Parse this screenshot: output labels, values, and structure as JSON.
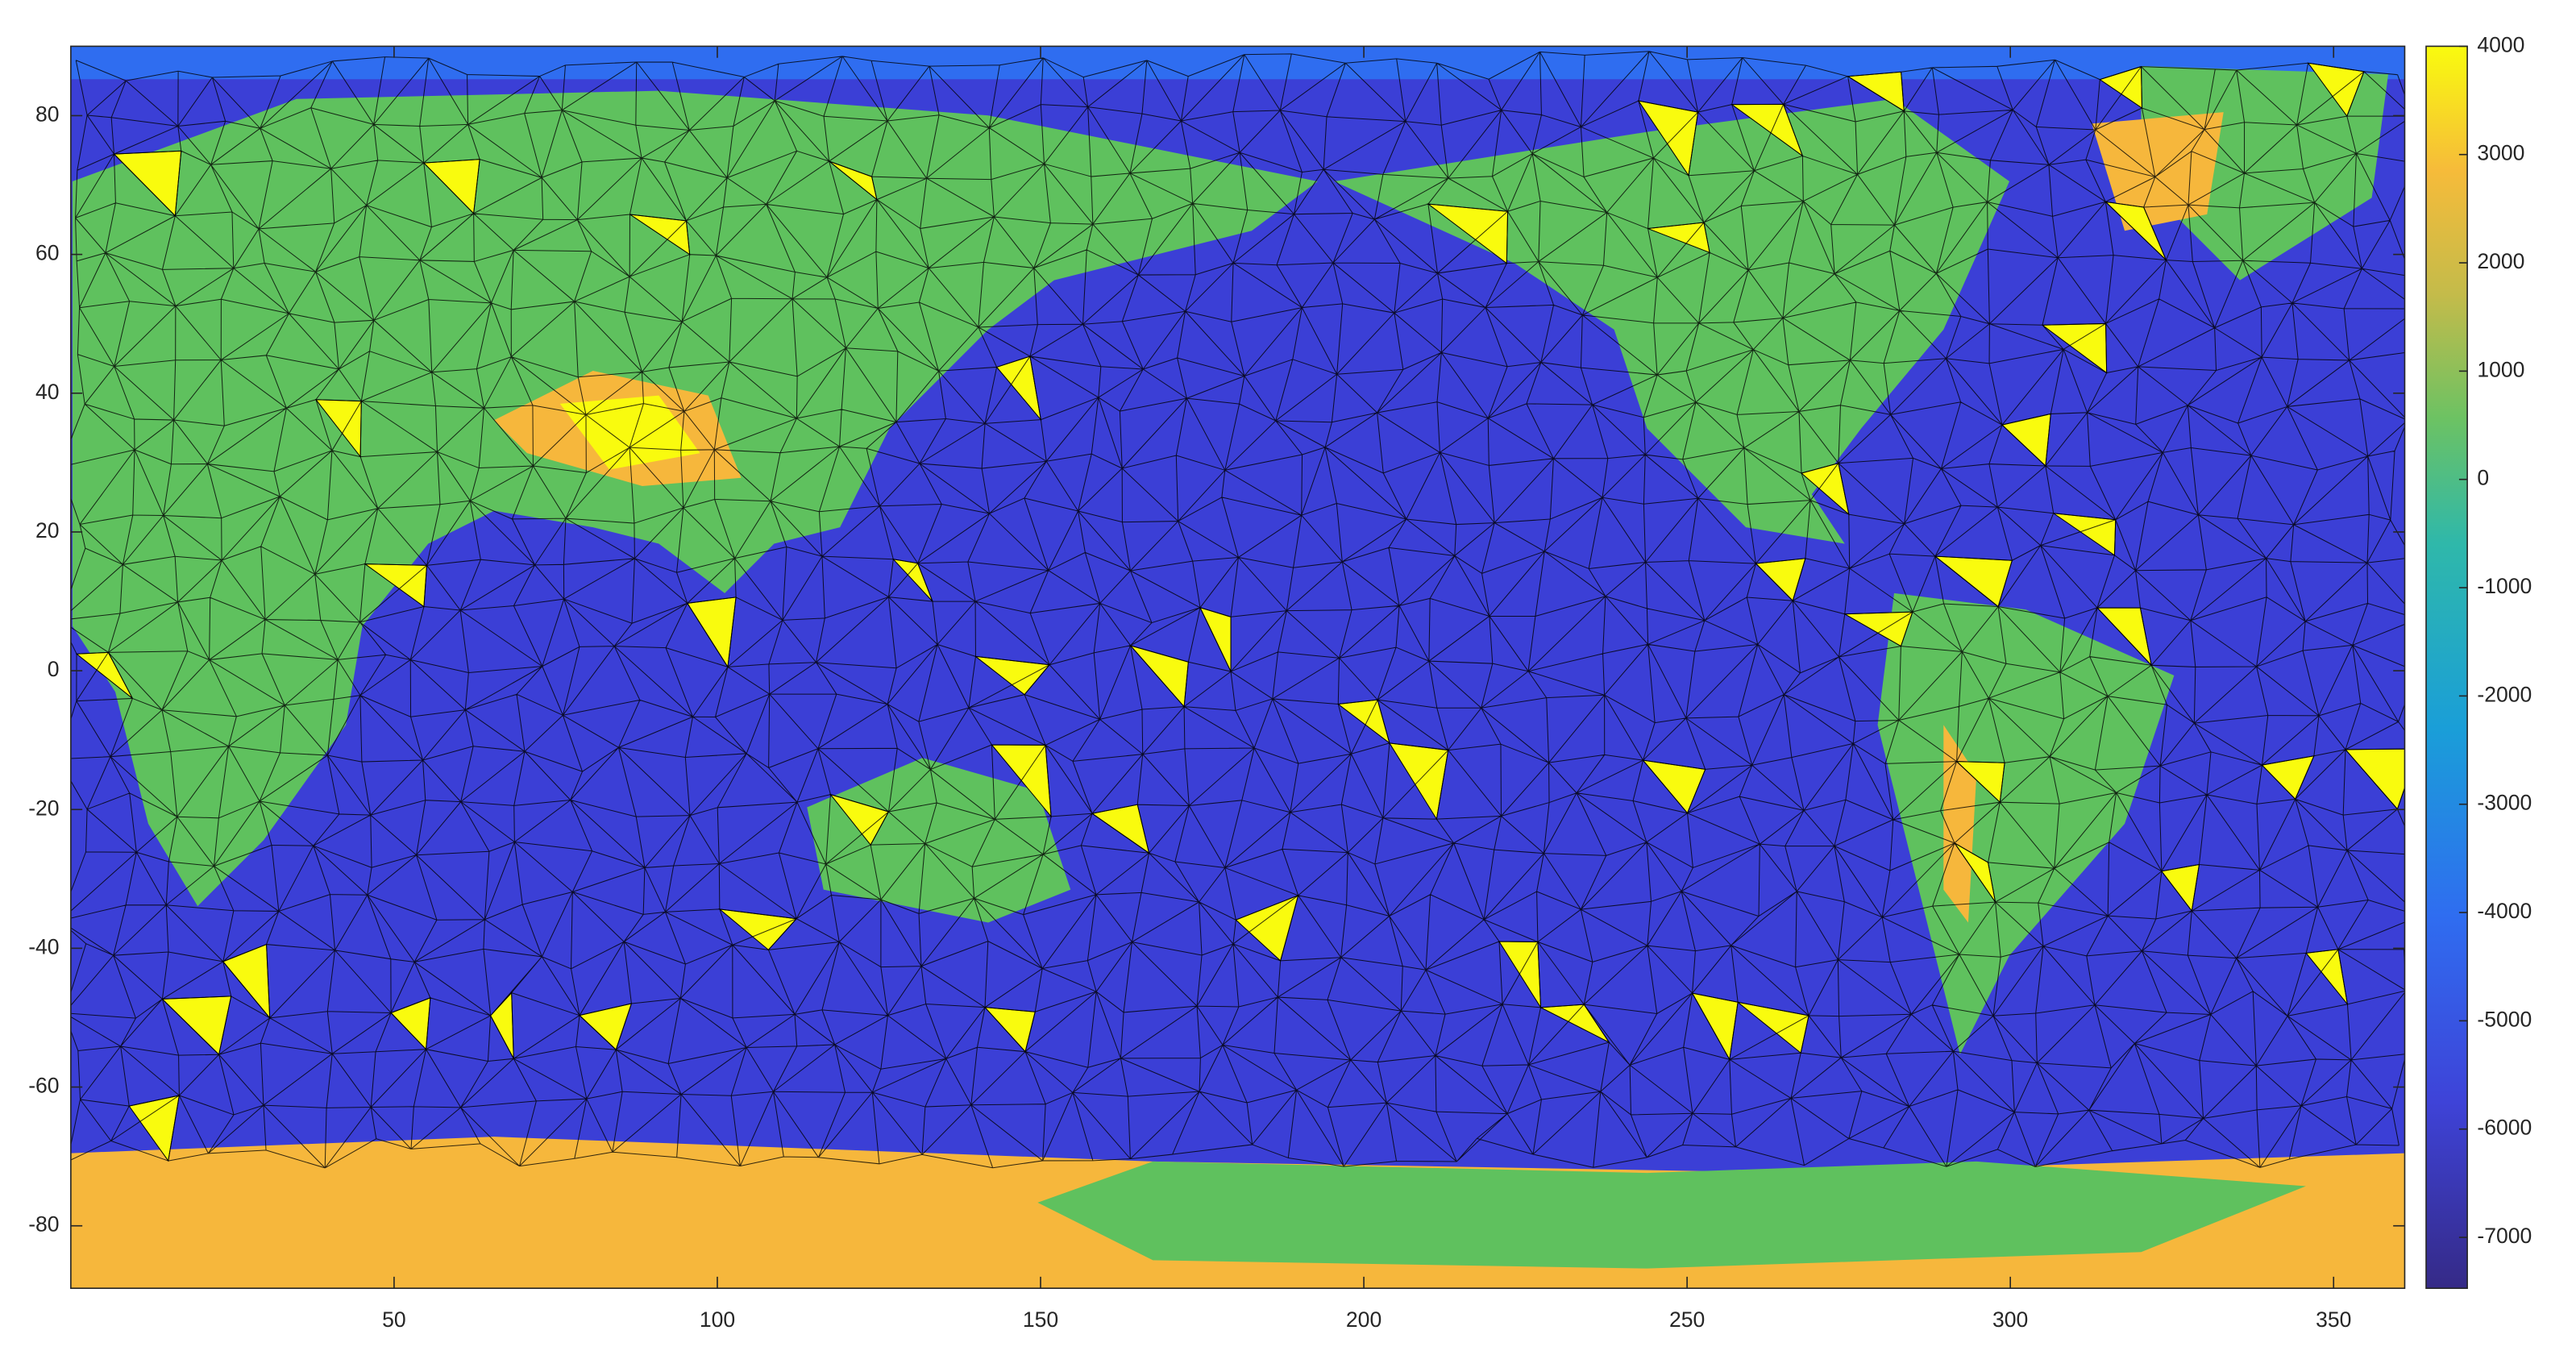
{
  "chart_data": {
    "type": "contour",
    "xlim": [
      0,
      361
    ],
    "ylim": [
      -89,
      90
    ],
    "xticks": [
      50,
      100,
      150,
      200,
      250,
      300,
      350
    ],
    "yticks": [
      -80,
      -60,
      -40,
      -20,
      0,
      20,
      40,
      60,
      80
    ],
    "colorbar": {
      "clim": [
        -7470,
        4000
      ],
      "ticks": [
        -7000,
        -6000,
        -5000,
        -4000,
        -3000,
        -2000,
        -1000,
        0,
        1000,
        2000,
        3000,
        4000
      ]
    },
    "grid": false
  }
}
